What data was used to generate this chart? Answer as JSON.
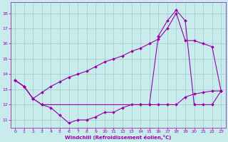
{
  "xlabel": "Windchill (Refroidissement éolien,°C)",
  "xlim": [
    -0.5,
    23.5
  ],
  "ylim": [
    10.5,
    18.7
  ],
  "yticks": [
    11,
    12,
    13,
    14,
    15,
    16,
    17,
    18
  ],
  "xticks": [
    0,
    1,
    2,
    3,
    4,
    5,
    6,
    7,
    8,
    9,
    10,
    11,
    12,
    13,
    14,
    15,
    16,
    17,
    18,
    19,
    20,
    21,
    22,
    23
  ],
  "bg_color": "#c8ecec",
  "grid_color": "#a8d0d0",
  "line_color": "#9900aa",
  "line1_x": [
    0,
    1,
    2,
    3,
    4,
    5,
    6,
    7,
    8,
    9,
    10,
    11,
    12,
    13,
    14,
    15,
    16,
    17,
    18,
    19,
    20,
    21,
    22,
    23
  ],
  "line1_y": [
    13.6,
    13.2,
    12.4,
    12.0,
    11.8,
    11.3,
    10.8,
    11.0,
    11.0,
    11.2,
    11.5,
    11.5,
    11.8,
    12.0,
    12.0,
    12.0,
    12.0,
    12.0,
    12.0,
    12.5,
    12.7,
    12.8,
    12.9,
    12.9
  ],
  "line2_x": [
    0,
    1,
    2,
    3,
    4,
    5,
    6,
    7,
    8,
    9,
    10,
    11,
    12,
    13,
    14,
    15,
    16,
    17,
    18,
    19,
    20,
    21,
    22,
    23
  ],
  "line2_y": [
    13.6,
    13.2,
    12.4,
    12.8,
    13.2,
    13.5,
    13.8,
    14.0,
    14.2,
    14.5,
    14.8,
    15.0,
    15.2,
    15.5,
    15.7,
    16.0,
    16.3,
    17.0,
    18.0,
    16.2,
    16.2,
    16.0,
    15.8,
    12.9
  ],
  "line3_x": [
    0,
    1,
    2,
    3,
    14,
    15,
    16,
    17,
    18,
    19,
    20,
    21,
    22,
    23
  ],
  "line3_y": [
    13.6,
    13.2,
    12.4,
    12.0,
    12.0,
    12.0,
    16.5,
    17.5,
    18.2,
    17.5,
    12.0,
    12.0,
    12.0,
    12.9
  ]
}
